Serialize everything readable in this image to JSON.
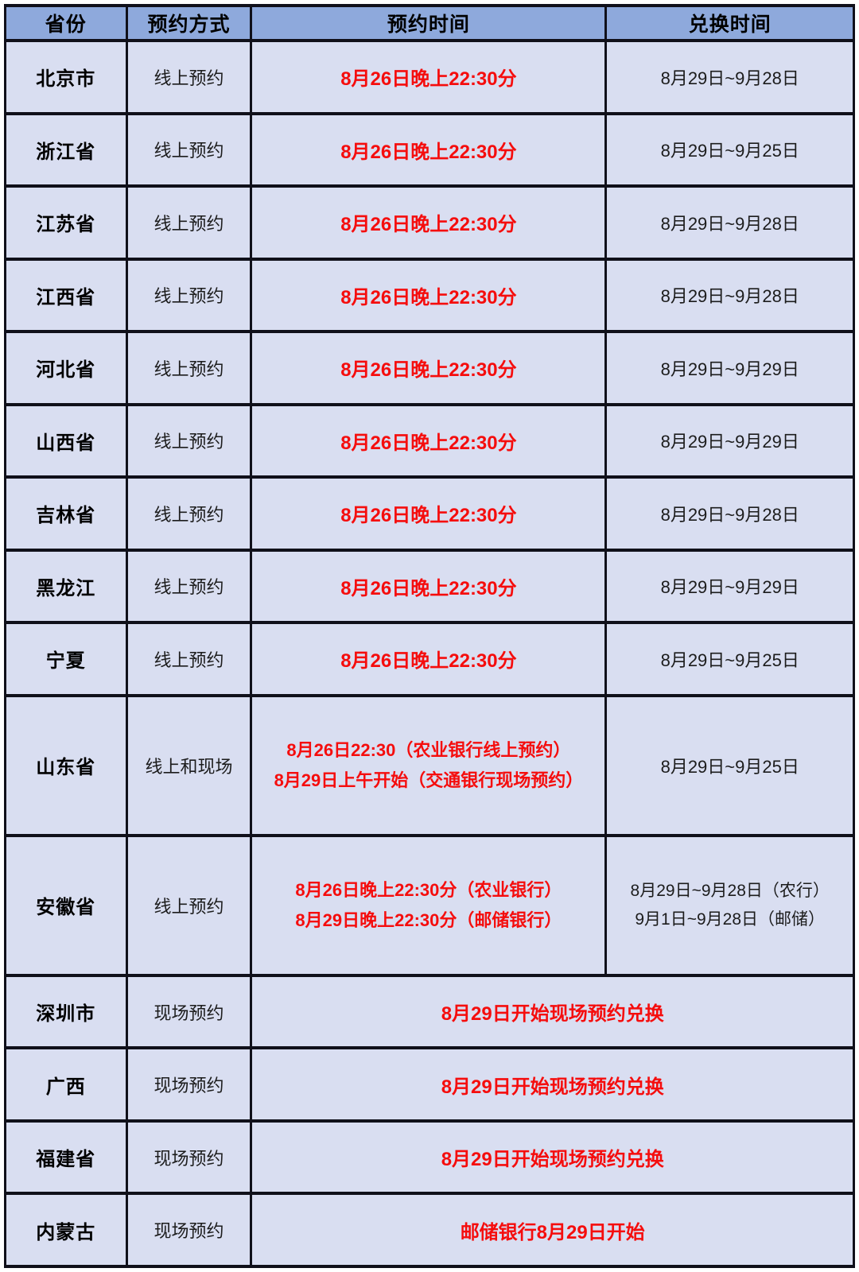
{
  "colors": {
    "header_bg": "#8EA9DC",
    "row_bg": "#D9DEF1",
    "border": "#10101A",
    "highlight_red": "#F50D0D"
  },
  "table": {
    "headers": [
      "省份",
      "预约方式",
      "预约时间",
      "兑换时间"
    ],
    "rows": [
      {
        "province": "北京市",
        "method": "线上预约",
        "merged": false,
        "reserve_lines": [
          "8月26日晚上22:30分"
        ],
        "exchange_lines": [
          "8月29日~9月28日"
        ]
      },
      {
        "province": "浙江省",
        "method": "线上预约",
        "merged": false,
        "reserve_lines": [
          "8月26日晚上22:30分"
        ],
        "exchange_lines": [
          "8月29日~9月25日"
        ]
      },
      {
        "province": "江苏省",
        "method": "线上预约",
        "merged": false,
        "reserve_lines": [
          "8月26日晚上22:30分"
        ],
        "exchange_lines": [
          "8月29日~9月28日"
        ]
      },
      {
        "province": "江西省",
        "method": "线上预约",
        "merged": false,
        "reserve_lines": [
          "8月26日晚上22:30分"
        ],
        "exchange_lines": [
          "8月29日~9月28日"
        ]
      },
      {
        "province": "河北省",
        "method": "线上预约",
        "merged": false,
        "reserve_lines": [
          "8月26日晚上22:30分"
        ],
        "exchange_lines": [
          "8月29日~9月29日"
        ]
      },
      {
        "province": "山西省",
        "method": "线上预约",
        "merged": false,
        "reserve_lines": [
          "8月26日晚上22:30分"
        ],
        "exchange_lines": [
          "8月29日~9月29日"
        ]
      },
      {
        "province": "吉林省",
        "method": "线上预约",
        "merged": false,
        "reserve_lines": [
          "8月26日晚上22:30分"
        ],
        "exchange_lines": [
          "8月29日~9月28日"
        ]
      },
      {
        "province": "黑龙江",
        "method": "线上预约",
        "merged": false,
        "reserve_lines": [
          "8月26日晚上22:30分"
        ],
        "exchange_lines": [
          "8月29日~9月29日"
        ]
      },
      {
        "province": "宁夏",
        "method": "线上预约",
        "merged": false,
        "reserve_lines": [
          "8月26日晚上22:30分"
        ],
        "exchange_lines": [
          "8月29日~9月25日"
        ]
      },
      {
        "province": "山东省",
        "method": "线上和现场",
        "merged": false,
        "reserve_lines": [
          "8月26日22:30（农业银行线上预约）",
          "8月29日上午开始（交通银行现场预约）"
        ],
        "exchange_lines": [
          "8月29日~9月25日"
        ]
      },
      {
        "province": "安徽省",
        "method": "线上预约",
        "merged": false,
        "reserve_lines": [
          "8月26日晚上22:30分（农业银行）",
          "8月29日晚上22:30分（邮储银行）"
        ],
        "exchange_lines": [
          "8月29日~9月28日（农行）",
          "9月1日~9月28日（邮储）"
        ]
      },
      {
        "province": "深圳市",
        "method": "现场预约",
        "merged": true,
        "reserve_lines": [
          "8月29日开始现场预约兑换"
        ],
        "exchange_lines": []
      },
      {
        "province": "广西",
        "method": "现场预约",
        "merged": true,
        "reserve_lines": [
          "8月29日开始现场预约兑换"
        ],
        "exchange_lines": []
      },
      {
        "province": "福建省",
        "method": "现场预约",
        "merged": true,
        "reserve_lines": [
          "8月29日开始现场预约兑换"
        ],
        "exchange_lines": []
      },
      {
        "province": "内蒙古",
        "method": "现场预约",
        "merged": true,
        "reserve_lines": [
          "邮储银行8月29日开始"
        ],
        "exchange_lines": []
      }
    ]
  }
}
